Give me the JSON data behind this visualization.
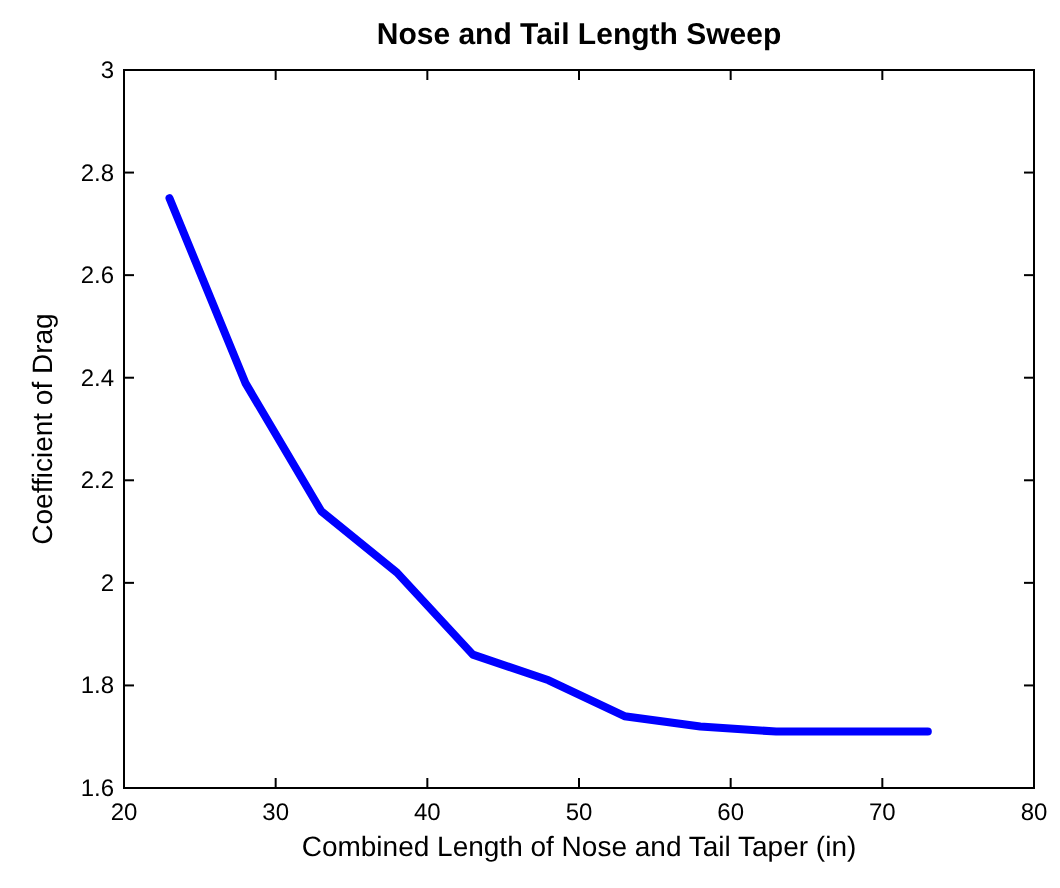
{
  "chart_data": {
    "type": "line",
    "title": "Nose and Tail Length Sweep",
    "xlabel": "Combined Length of Nose and Tail Taper (in)",
    "ylabel": "Coefficient of Drag",
    "x": [
      23,
      28,
      33,
      38,
      43,
      48,
      53,
      58,
      63,
      68,
      73
    ],
    "series": [
      {
        "color": "#0000ff",
        "values": [
          2.75,
          2.39,
          2.14,
          2.02,
          1.86,
          1.81,
          1.74,
          1.72,
          1.71,
          1.71,
          1.71
        ]
      }
    ],
    "xlim": [
      20,
      80
    ],
    "xticks": [
      20,
      30,
      40,
      50,
      60,
      70,
      80
    ],
    "ylim": [
      1.6,
      3
    ],
    "yticks": [
      1.6,
      1.8,
      2,
      2.2,
      2.4,
      2.6,
      2.8,
      3
    ],
    "grid": false,
    "marker": "none",
    "line_style": "solid"
  }
}
